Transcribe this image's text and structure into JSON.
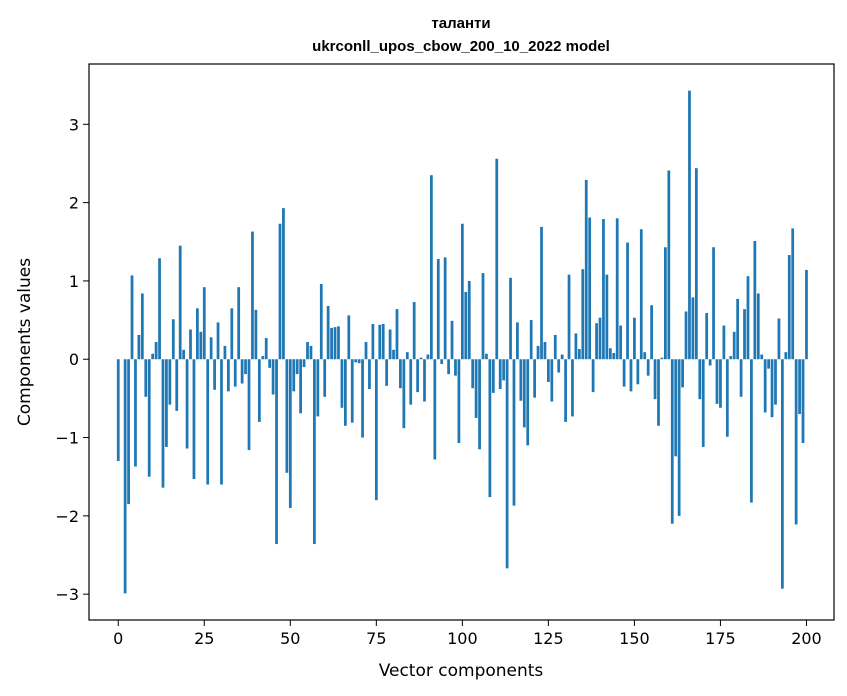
{
  "chart_data": {
    "type": "bar",
    "title": "таланти",
    "subtitle": "ukrconll_upos_cbow_200_10_2022 model",
    "xlabel": "Vector components",
    "ylabel": "Components values",
    "xlim": [
      -8.5,
      208
    ],
    "ylim": [
      -3.33,
      3.77
    ],
    "xticks": [
      0,
      25,
      50,
      75,
      100,
      125,
      150,
      175,
      200
    ],
    "yticks": [
      -3,
      -2,
      -1,
      0,
      1,
      2,
      3
    ],
    "ytick_labels": [
      "−3",
      "−2",
      "−1",
      "0",
      "1",
      "2",
      "3"
    ],
    "bar_color": "#1f77b4",
    "grid": false,
    "values": [
      -1.3,
      0.0,
      -2.99,
      -1.85,
      1.07,
      -1.37,
      0.31,
      0.84,
      -0.48,
      -1.5,
      0.07,
      0.22,
      1.29,
      -1.64,
      -1.12,
      -0.58,
      0.51,
      -0.66,
      1.45,
      0.12,
      -1.14,
      0.38,
      -1.53,
      0.65,
      0.35,
      0.92,
      -1.6,
      0.28,
      -0.39,
      0.47,
      -1.6,
      0.17,
      -0.41,
      0.65,
      -0.35,
      0.92,
      -0.31,
      -0.19,
      -1.16,
      1.63,
      0.63,
      -0.8,
      0.04,
      0.27,
      -0.11,
      -0.45,
      -2.36,
      1.73,
      1.93,
      -1.45,
      -1.9,
      -0.41,
      -0.19,
      -0.69,
      -0.1,
      0.22,
      0.17,
      -2.36,
      -0.73,
      0.96,
      -0.48,
      0.68,
      0.4,
      0.41,
      0.42,
      -0.62,
      -0.85,
      0.56,
      -0.81,
      -0.04,
      -0.05,
      -1.0,
      0.22,
      -0.38,
      0.45,
      -1.8,
      0.44,
      0.45,
      -0.34,
      0.38,
      0.12,
      0.64,
      -0.37,
      -0.88,
      0.09,
      -0.58,
      0.73,
      -0.42,
      0.02,
      -0.54,
      0.06,
      2.35,
      -1.28,
      1.28,
      -0.06,
      1.3,
      -0.19,
      0.49,
      -0.21,
      -1.07,
      1.73,
      0.86,
      1.0,
      -0.37,
      -0.75,
      -1.15,
      1.1,
      0.07,
      -1.76,
      -0.43,
      2.56,
      -0.38,
      -0.27,
      -2.67,
      1.04,
      -1.87,
      0.47,
      -0.53,
      -0.87,
      -1.1,
      0.5,
      -0.49,
      0.17,
      1.69,
      0.22,
      -0.29,
      -0.54,
      0.31,
      -0.17,
      0.06,
      -0.8,
      1.08,
      -0.73,
      0.33,
      0.13,
      1.15,
      2.29,
      1.81,
      -0.42,
      0.46,
      0.53,
      1.79,
      1.08,
      0.14,
      0.08,
      1.8,
      0.43,
      -0.35,
      1.49,
      -0.41,
      0.53,
      -0.32,
      1.66,
      0.09,
      -0.21,
      0.69,
      -0.51,
      -0.85,
      0.02,
      1.43,
      2.41,
      -2.1,
      -1.24,
      -2.0,
      -0.36,
      0.61,
      3.43,
      0.79,
      2.44,
      -0.51,
      -1.12,
      0.59,
      -0.08,
      1.43,
      -0.57,
      -0.62,
      0.43,
      -0.99,
      0.04,
      0.35,
      0.77,
      -0.48,
      0.64,
      1.06,
      -1.83,
      1.51,
      0.84,
      0.06,
      -0.68,
      -0.12,
      -0.74,
      -0.58,
      0.52,
      -2.93,
      0.09,
      1.33,
      1.67,
      -2.11,
      -0.7,
      -1.07,
      1.14
    ]
  }
}
